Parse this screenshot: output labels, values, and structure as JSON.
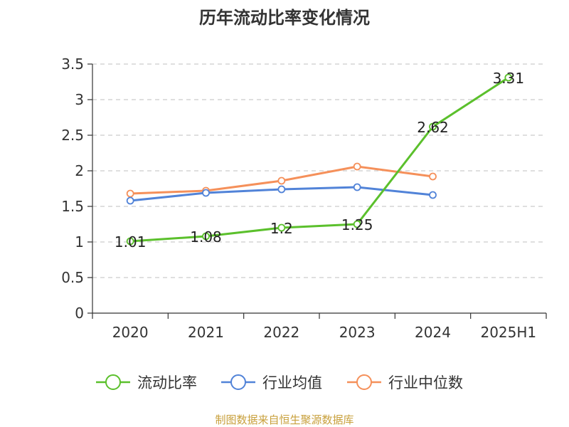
{
  "chart_data": {
    "type": "line",
    "title": "历年流动比率变化情况",
    "categories": [
      "2020",
      "2021",
      "2022",
      "2023",
      "2024",
      "2025H1"
    ],
    "yticks": [
      "0",
      "0.5",
      "1",
      "1.5",
      "2",
      "2.5",
      "3",
      "3.5"
    ],
    "ylim": [
      0,
      3.5
    ],
    "grid": true,
    "legend_position": "bottom",
    "series": [
      {
        "name": "流动比率",
        "color": "#5bc02c",
        "values": [
          1.01,
          1.08,
          1.2,
          1.25,
          2.62,
          3.31
        ],
        "labels": [
          "1.01",
          "1.08",
          "1.2",
          "1.25",
          "2.62",
          "3.31"
        ]
      },
      {
        "name": "行业均值",
        "color": "#5183d8",
        "values": [
          1.58,
          1.69,
          1.74,
          1.77,
          1.66,
          null
        ]
      },
      {
        "name": "行业中位数",
        "color": "#f5905a",
        "values": [
          1.68,
          1.72,
          1.86,
          2.06,
          1.92,
          null
        ]
      }
    ],
    "source": "制图数据来自恒生聚源数据库",
    "source_color": "#c8a03c"
  }
}
